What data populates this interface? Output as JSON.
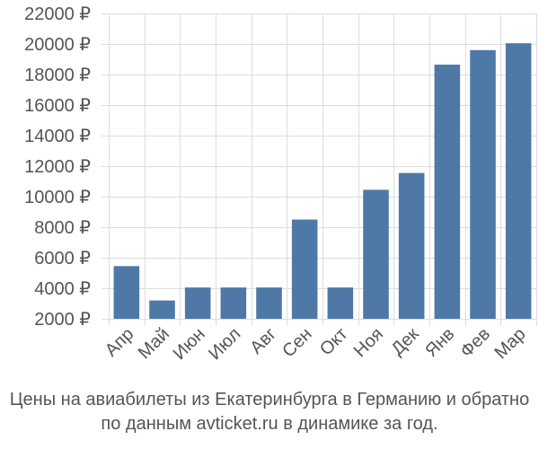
{
  "chart_data": {
    "type": "bar",
    "categories": [
      "Апр",
      "Май",
      "Июн",
      "Июл",
      "Авг",
      "Сен",
      "Окт",
      "Ноя",
      "Дек",
      "Янв",
      "Фев",
      "Мар"
    ],
    "values": [
      5450,
      3200,
      4050,
      4050,
      4050,
      8500,
      4050,
      10450,
      11550,
      18650,
      19600,
      20050
    ],
    "y_ticks": [
      "2000 ₽",
      "4000 ₽",
      "6000 ₽",
      "8000 ₽",
      "10000 ₽",
      "12000 ₽",
      "14000 ₽",
      "16000 ₽",
      "18000 ₽",
      "20000 ₽",
      "22000 ₽"
    ],
    "y_tick_values": [
      2000,
      4000,
      6000,
      8000,
      10000,
      12000,
      14000,
      16000,
      18000,
      20000,
      22000
    ],
    "ylim": [
      2000,
      22000
    ],
    "grid": true,
    "bar_color": "#4e79a7",
    "grid_color": "#dddddd",
    "title": "",
    "xlabel": "",
    "ylabel": ""
  },
  "caption": {
    "line1": "Цены на авиабилеты из Екатеринбурга в Германию и обратно",
    "line2": "по данным avticket.ru в динамике за год."
  }
}
